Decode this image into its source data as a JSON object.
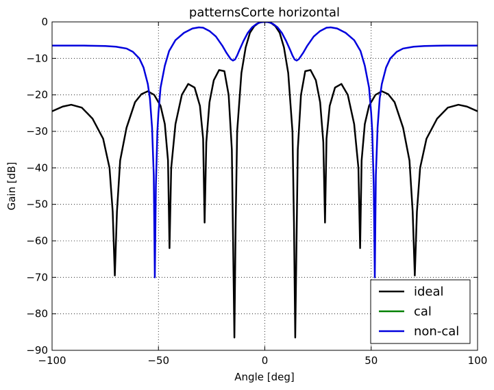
{
  "chart_data": {
    "type": "line",
    "title": "patternsCorte horizontal",
    "xlabel": "Angle [deg]",
    "ylabel": "Gain [dB]",
    "xlim": [
      -100,
      100
    ],
    "ylim": [
      -90,
      0
    ],
    "xticks": [
      -100,
      -50,
      0,
      50,
      100
    ],
    "xtick_labels": [
      "−100",
      "−50",
      "0",
      "50",
      "100"
    ],
    "yticks": [
      0,
      -10,
      -20,
      -30,
      -40,
      -50,
      -60,
      -70,
      -80,
      -90
    ],
    "ytick_labels": [
      "0",
      "−10",
      "−20",
      "−30",
      "−40",
      "−50",
      "−60",
      "−70",
      "−80",
      "−90"
    ],
    "grid": true,
    "legend_position": "bottom-right",
    "series": [
      {
        "name": "ideal",
        "color": "#000000",
        "x": [
          -100,
          -95,
          -91,
          -86,
          -81,
          -76,
          -73,
          -71.5,
          -70.5,
          -69.5,
          -68,
          -65,
          -61,
          -58,
          -55,
          -52,
          -49,
          -47,
          -45.5,
          -44.8,
          -44,
          -42,
          -39,
          -36,
          -33,
          -30.5,
          -29,
          -28.3,
          -27.5,
          -26,
          -24,
          -21.5,
          -19,
          -17,
          -15.5,
          -14.3,
          -13.7,
          -13,
          -11,
          -9,
          -7,
          -5,
          -3,
          -1.5,
          0,
          1.5,
          3,
          5,
          7,
          9,
          11,
          13,
          13.7,
          14.3,
          15.5,
          17,
          19,
          21.5,
          24,
          26,
          27.5,
          28.3,
          29,
          30.5,
          33,
          36,
          39,
          42,
          44,
          44.8,
          45.5,
          47,
          49,
          52,
          55,
          58,
          61,
          65,
          68,
          69.5,
          70.5,
          71.5,
          73,
          76,
          81,
          86,
          91,
          95,
          100
        ],
        "y": [
          -24.5,
          -23.2,
          -22.7,
          -23.5,
          -26.5,
          -32,
          -40,
          -52,
          -69.5,
          -52,
          -38,
          -29,
          -22,
          -19.8,
          -19,
          -20,
          -23,
          -28,
          -38,
          -62,
          -40,
          -28,
          -20,
          -17,
          -18,
          -23,
          -32,
          -55,
          -33,
          -22,
          -16,
          -13.2,
          -13.5,
          -20,
          -35,
          -86.5,
          -55,
          -30,
          -14,
          -7,
          -3,
          -1.2,
          -0.3,
          -0.05,
          0,
          -0.05,
          -0.3,
          -1.2,
          -3,
          -7,
          -14,
          -30,
          -55,
          -86.5,
          -35,
          -20,
          -13.5,
          -13.2,
          -16,
          -22,
          -33,
          -55,
          -32,
          -23,
          -18,
          -17,
          -20,
          -28,
          -40,
          -62,
          -38,
          -28,
          -23,
          -20,
          -19,
          -19.8,
          -22,
          -29,
          -38,
          -52,
          -69.5,
          -52,
          -40,
          -32,
          -26.5,
          -23.5,
          -22.7,
          -23.2,
          -24.5
        ]
      },
      {
        "name": "cal",
        "color": "#008000",
        "x": [],
        "y": []
      },
      {
        "name": "non-cal",
        "color": "#0000dd",
        "x": [
          -100,
          -85,
          -75,
          -70,
          -65,
          -62,
          -59,
          -57,
          -55,
          -54,
          -53,
          -52.2,
          -51.7,
          -51.2,
          -50.5,
          -50,
          -49,
          -47,
          -45,
          -42,
          -38,
          -34,
          -31,
          -29,
          -26,
          -23,
          -20,
          -18,
          -16,
          -15,
          -14,
          -13,
          -12,
          -10,
          -8,
          -6,
          -4,
          -2,
          0,
          2,
          4,
          6,
          8,
          10,
          12,
          13,
          14,
          15,
          16,
          18,
          20,
          23,
          26,
          29,
          31,
          34,
          38,
          42,
          45,
          47,
          49,
          50,
          50.5,
          51.2,
          51.7,
          52.2,
          53,
          54,
          55,
          57,
          59,
          62,
          65,
          70,
          75,
          85,
          100
        ],
        "y": [
          -6.5,
          -6.5,
          -6.6,
          -6.8,
          -7.3,
          -8.2,
          -10,
          -12.5,
          -17,
          -21,
          -29,
          -42,
          -70,
          -45,
          -30,
          -25,
          -18,
          -12,
          -8,
          -5,
          -3,
          -1.8,
          -1.5,
          -1.6,
          -2.5,
          -4,
          -6.5,
          -8.5,
          -10.2,
          -10.6,
          -10.3,
          -9.2,
          -7.8,
          -5.2,
          -3,
          -1.5,
          -0.6,
          -0.1,
          0,
          -0.1,
          -0.6,
          -1.5,
          -3,
          -5.2,
          -7.8,
          -9.2,
          -10.3,
          -10.6,
          -10.2,
          -8.5,
          -6.5,
          -4,
          -2.5,
          -1.6,
          -1.5,
          -1.8,
          -3,
          -5,
          -8,
          -12,
          -18,
          -25,
          -30,
          -45,
          -70,
          -42,
          -29,
          -21,
          -17,
          -12.5,
          -10,
          -8.2,
          -7.3,
          -6.8,
          -6.6,
          -6.5,
          -6.5
        ]
      }
    ]
  }
}
